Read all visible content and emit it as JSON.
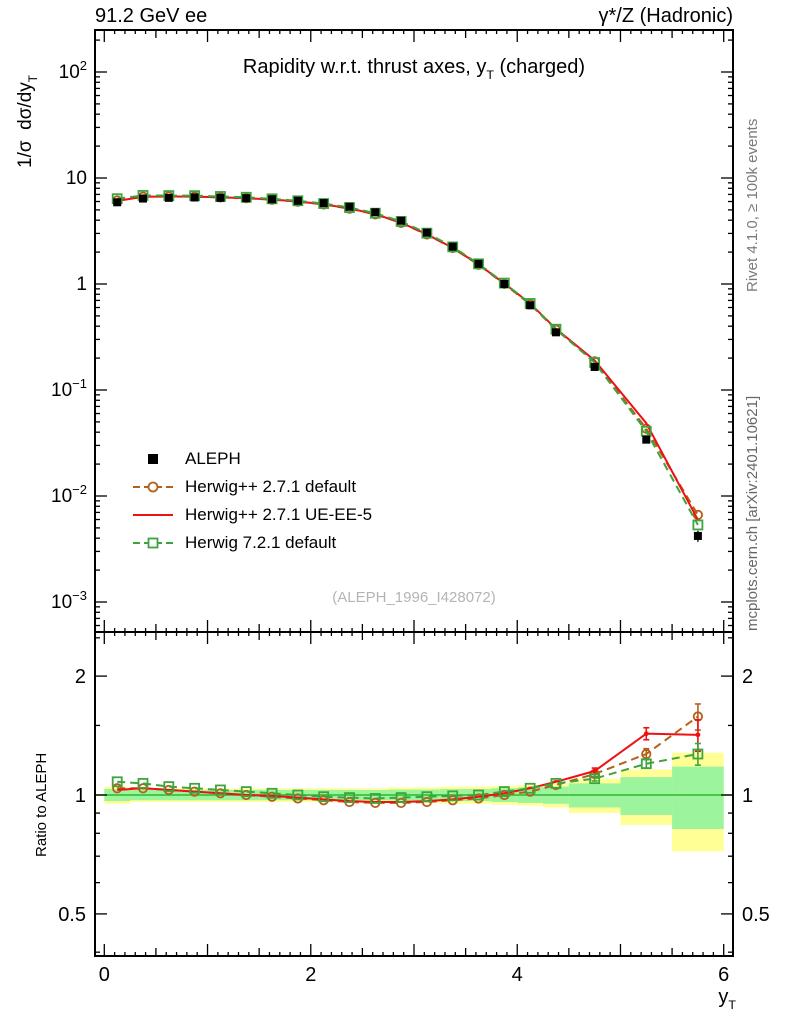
{
  "header": {
    "left": "91.2 GeV ee",
    "right": "γ*/Z (Hadronic)"
  },
  "side_captions": {
    "right_top": "Rivet 4.1.0, ≥ 100k events",
    "right_bottom": "mcplots.cern.ch [arXiv:2401.10621]"
  },
  "watermark": "(ALEPH_1996_I428072)",
  "legend": {
    "items": [
      {
        "label": "ALEPH",
        "marker": "filled-square",
        "line": "none",
        "color": "#000000"
      },
      {
        "label": "Herwig++ 2.7.1 default",
        "marker": "open-circle",
        "line": "dashed",
        "color": "#b4601a"
      },
      {
        "label": "Herwig++ 2.7.1 UE-EE-5",
        "marker": "none",
        "line": "solid",
        "color": "#ee1111"
      },
      {
        "label": "Herwig 7.2.1 default",
        "marker": "open-square",
        "line": "dashed",
        "color": "#3fa33f"
      }
    ]
  },
  "chart_data": {
    "type": "line",
    "title": {
      "pre": "Rapidity w.r.t. thrust axes, y",
      "sub": "T",
      "post": " (charged)"
    },
    "xlabel": {
      "pre": "y",
      "sub": "T"
    },
    "ylabel_main": {
      "pre": "1/σ  dσ/dy",
      "sub": "T"
    },
    "ylabel_ratio": "Ratio to ALEPH",
    "axes": {
      "x_range": [
        0,
        6
      ],
      "x_ticks_labeled": [
        0,
        2,
        4,
        6
      ],
      "y_scale_main": "log",
      "y_ticks_exponents": [
        2,
        1,
        0,
        -1,
        -2,
        -3
      ],
      "ratio_scale": "log",
      "ratio_ticks": [
        2,
        1,
        0.5
      ],
      "ratio_minor_ticks": [
        0.4,
        0.6,
        0.7,
        0.8,
        0.9,
        1.5,
        2.5
      ],
      "grid": false,
      "legend_position": "middle-left"
    },
    "bin_edges": [
      0,
      0.25,
      0.5,
      0.75,
      1.0,
      1.25,
      1.5,
      1.75,
      2.0,
      2.25,
      2.5,
      2.75,
      3.0,
      3.25,
      3.5,
      3.75,
      4.0,
      4.25,
      4.5,
      5.0,
      5.5,
      6.0
    ],
    "x": [
      0.125,
      0.375,
      0.625,
      0.875,
      1.125,
      1.375,
      1.625,
      1.875,
      2.125,
      2.375,
      2.625,
      2.875,
      3.125,
      3.375,
      3.625,
      3.875,
      4.125,
      4.375,
      4.75,
      5.25,
      5.75
    ],
    "reference": {
      "name": "ALEPH",
      "values": [
        5.9,
        6.4,
        6.5,
        6.55,
        6.5,
        6.45,
        6.3,
        6.1,
        5.8,
        5.35,
        4.75,
        3.95,
        3.05,
        2.25,
        1.55,
        1.0,
        0.63,
        0.35,
        0.165,
        0.034,
        0.0042
      ],
      "rel_err": [
        0.02,
        0.02,
        0.02,
        0.02,
        0.02,
        0.02,
        0.02,
        0.02,
        0.02,
        0.02,
        0.02,
        0.02,
        0.02,
        0.02,
        0.02,
        0.02,
        0.025,
        0.03,
        0.04,
        0.06,
        0.12
      ]
    },
    "series": [
      {
        "name": "Herwig++ 2.7.1 default",
        "color": "#b4601a",
        "style": "dashed",
        "marker": "circle-open",
        "ratio": [
          1.04,
          1.04,
          1.03,
          1.02,
          1.01,
          1.0,
          0.99,
          0.98,
          0.97,
          0.96,
          0.955,
          0.955,
          0.96,
          0.97,
          0.98,
          1.0,
          1.02,
          1.06,
          1.13,
          1.27,
          1.58
        ],
        "ratio_err": [
          0,
          0,
          0,
          0,
          0,
          0,
          0,
          0,
          0,
          0,
          0,
          0,
          0,
          0,
          0,
          0,
          0,
          0,
          0.02,
          0.04,
          0.12
        ]
      },
      {
        "name": "Herwig++ 2.7.1 UE-EE-5",
        "color": "#ee1111",
        "style": "solid",
        "marker": "none",
        "ratio": [
          1.03,
          1.04,
          1.03,
          1.02,
          1.01,
          1.0,
          0.995,
          0.985,
          0.975,
          0.965,
          0.96,
          0.96,
          0.965,
          0.975,
          0.99,
          1.01,
          1.04,
          1.08,
          1.15,
          1.43,
          1.42
        ],
        "ratio_err": [
          0,
          0,
          0,
          0,
          0,
          0,
          0,
          0,
          0,
          0,
          0,
          0,
          0,
          0,
          0,
          0,
          0,
          0,
          0.02,
          0.05,
          0.13
        ]
      },
      {
        "name": "Herwig 7.2.1 default",
        "color": "#3fa33f",
        "style": "dashed",
        "marker": "square-open",
        "ratio": [
          1.08,
          1.07,
          1.05,
          1.04,
          1.03,
          1.02,
          1.01,
          1.0,
          0.99,
          0.985,
          0.98,
          0.985,
          0.99,
          0.995,
          1.0,
          1.02,
          1.04,
          1.07,
          1.1,
          1.2,
          1.27
        ],
        "ratio_err": [
          0,
          0,
          0,
          0,
          0,
          0,
          0,
          0,
          0,
          0,
          0,
          0,
          0,
          0,
          0,
          0,
          0,
          0,
          0.015,
          0.03,
          0.08
        ]
      }
    ],
    "bands": {
      "reference_line_color": "#2eb82e",
      "yellow": {
        "color": "#ffff96",
        "half_width": [
          0.05,
          0.04,
          0.04,
          0.04,
          0.04,
          0.04,
          0.04,
          0.04,
          0.04,
          0.04,
          0.04,
          0.045,
          0.045,
          0.05,
          0.05,
          0.055,
          0.06,
          0.07,
          0.1,
          0.16,
          0.28
        ]
      },
      "green": {
        "color": "#9cf49c",
        "half_width": [
          0.035,
          0.03,
          0.03,
          0.03,
          0.03,
          0.03,
          0.03,
          0.03,
          0.03,
          0.03,
          0.03,
          0.032,
          0.032,
          0.035,
          0.035,
          0.04,
          0.045,
          0.05,
          0.07,
          0.11,
          0.18
        ]
      }
    }
  }
}
